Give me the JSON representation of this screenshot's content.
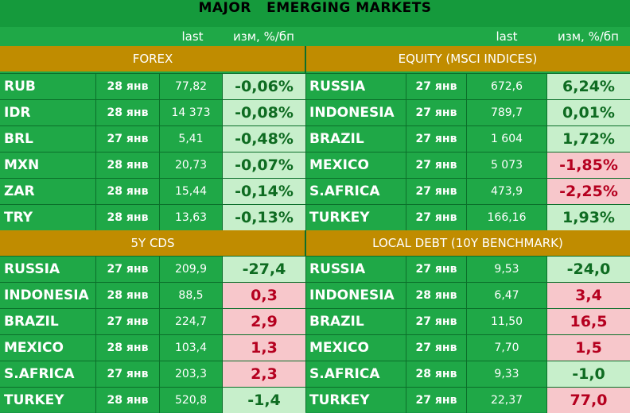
{
  "title": "MAJOR   EMERGING MARKETS",
  "columns": {
    "last": "last",
    "change": "изм, %/бп"
  },
  "panels": {
    "forex": {
      "title": "FOREX",
      "rows": [
        {
          "name": "RUB",
          "date": "28 янв",
          "last": "77,82",
          "change": "-0,06%",
          "trend": "pos"
        },
        {
          "name": "IDR",
          "date": "28 янв",
          "last": "14 373",
          "change": "-0,08%",
          "trend": "pos"
        },
        {
          "name": "BRL",
          "date": "27 янв",
          "last": "5,41",
          "change": "-0,48%",
          "trend": "pos"
        },
        {
          "name": "MXN",
          "date": "28 янв",
          "last": "20,73",
          "change": "-0,07%",
          "trend": "pos"
        },
        {
          "name": "ZAR",
          "date": "28 янв",
          "last": "15,44",
          "change": "-0,14%",
          "trend": "pos"
        },
        {
          "name": "TRY",
          "date": "28 янв",
          "last": "13,63",
          "change": "-0,13%",
          "trend": "pos"
        }
      ]
    },
    "equity": {
      "title": "EQUITY (MSCI INDICES)",
      "rows": [
        {
          "name": "RUSSIA",
          "date": "27 янв",
          "last": "672,6",
          "change": "6,24%",
          "trend": "pos"
        },
        {
          "name": "INDONESIA",
          "date": "27 янв",
          "last": "789,7",
          "change": "0,01%",
          "trend": "pos"
        },
        {
          "name": "BRAZIL",
          "date": "27 янв",
          "last": "1 604",
          "change": "1,72%",
          "trend": "pos"
        },
        {
          "name": "MEXICO",
          "date": "27 янв",
          "last": "5 073",
          "change": "-1,85%",
          "trend": "neg"
        },
        {
          "name": "S.AFRICA",
          "date": "27 янв",
          "last": "473,9",
          "change": "-2,25%",
          "trend": "neg"
        },
        {
          "name": "TURKEY",
          "date": "27 янв",
          "last": "166,16",
          "change": "1,93%",
          "trend": "pos"
        }
      ]
    },
    "cds": {
      "title": "5Y CDS",
      "rows": [
        {
          "name": "RUSSIA",
          "date": "27 янв",
          "last": "209,9",
          "change": "-27,4",
          "trend": "pos"
        },
        {
          "name": "INDONESIA",
          "date": "28 янв",
          "last": "88,5",
          "change": "0,3",
          "trend": "neg"
        },
        {
          "name": "BRAZIL",
          "date": "27 янв",
          "last": "224,7",
          "change": "2,9",
          "trend": "neg"
        },
        {
          "name": "MEXICO",
          "date": "28 янв",
          "last": "103,4",
          "change": "1,3",
          "trend": "neg"
        },
        {
          "name": "S.AFRICA",
          "date": "27 янв",
          "last": "203,3",
          "change": "2,3",
          "trend": "neg"
        },
        {
          "name": "TURKEY",
          "date": "28 янв",
          "last": "520,8",
          "change": "-1,4",
          "trend": "pos"
        }
      ]
    },
    "debt": {
      "title": "LOCAL DEBT (10Y BENCHMARK)",
      "rows": [
        {
          "name": "RUSSIA",
          "date": "27 янв",
          "last": "9,53",
          "change": "-24,0",
          "trend": "pos"
        },
        {
          "name": "INDONESIA",
          "date": "28 янв",
          "last": "6,47",
          "change": "3,4",
          "trend": "neg"
        },
        {
          "name": "BRAZIL",
          "date": "27 янв",
          "last": "11,50",
          "change": "16,5",
          "trend": "neg"
        },
        {
          "name": "MEXICO",
          "date": "27 янв",
          "last": "7,70",
          "change": "1,5",
          "trend": "neg"
        },
        {
          "name": "S.AFRICA",
          "date": "28 янв",
          "last": "9,33",
          "change": "-1,0",
          "trend": "pos"
        },
        {
          "name": "TURKEY",
          "date": "27 янв",
          "last": "22,37",
          "change": "77,0",
          "trend": "neg"
        }
      ]
    }
  }
}
